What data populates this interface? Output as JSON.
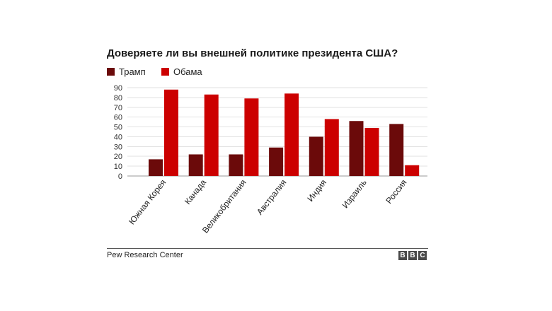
{
  "chart_data": {
    "type": "bar",
    "title": "Доверяете ли вы внешней политике президента США?",
    "categories": [
      "Южная Корея",
      "Канада",
      "Великобритания",
      "Австралия",
      "Индия",
      "Израиль",
      "Россия"
    ],
    "series": [
      {
        "name": "Трамп",
        "color": "#6b0a0a",
        "values": [
          17,
          22,
          22,
          29,
          40,
          56,
          53
        ]
      },
      {
        "name": "Обама",
        "color": "#cc0000",
        "values": [
          88,
          83,
          79,
          84,
          58,
          49,
          11
        ]
      }
    ],
    "ylim": [
      0,
      90
    ],
    "yticks": [
      0,
      10,
      20,
      30,
      40,
      50,
      60,
      70,
      80,
      90
    ],
    "xlabel": "",
    "ylabel": "",
    "grid": true,
    "legend": "top-left"
  },
  "footer": {
    "source": "Pew Research Center",
    "logo_letters": [
      "B",
      "B",
      "C"
    ]
  }
}
